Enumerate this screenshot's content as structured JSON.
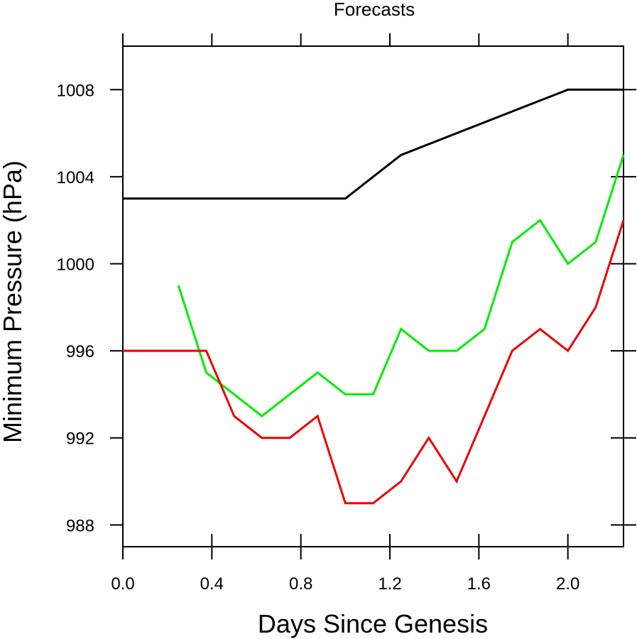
{
  "chart_data": {
    "type": "line",
    "title": "Forecasts",
    "xlabel": "Days Since Genesis",
    "ylabel": "Minimum Pressure (hPa)",
    "xlim": [
      0.0,
      2.25
    ],
    "ylim": [
      987,
      1010
    ],
    "xticks": [
      0.0,
      0.4,
      0.8,
      1.2,
      1.6,
      2.0
    ],
    "xtick_labels": [
      "0.0",
      "0.4",
      "0.8",
      "1.2",
      "1.6",
      "2.0"
    ],
    "yticks": [
      988,
      992,
      996,
      1000,
      1004,
      1008
    ],
    "ytick_labels": [
      "988",
      "992",
      "996",
      "1000",
      "1004",
      "1008"
    ],
    "grid": false,
    "legend": "none",
    "series": [
      {
        "color": "#000000",
        "x": [
          0.0,
          1.0,
          1.25,
          2.0,
          2.25
        ],
        "y": [
          1003,
          1003,
          1005,
          1008,
          1008
        ]
      },
      {
        "color": "#00ee00",
        "x": [
          0.25,
          0.375,
          0.5,
          0.625,
          0.75,
          0.875,
          1.0,
          1.125,
          1.25,
          1.375,
          1.5,
          1.625,
          1.75,
          1.875,
          2.0,
          2.125,
          2.25
        ],
        "y": [
          999,
          995,
          994,
          993,
          994,
          995,
          994,
          994,
          997,
          996,
          996,
          997,
          1001,
          1002,
          1000,
          1001,
          1005
        ]
      },
      {
        "color": "#ee0000",
        "x": [
          0.0,
          0.375,
          0.5,
          0.625,
          0.75,
          0.875,
          1.0,
          1.125,
          1.25,
          1.375,
          1.5,
          1.625,
          1.75,
          1.875,
          2.0,
          2.125,
          2.25
        ],
        "y": [
          996,
          996,
          993,
          992,
          992,
          993,
          989,
          989,
          990,
          992,
          990,
          993,
          996,
          997,
          996,
          998,
          1002
        ]
      }
    ]
  }
}
